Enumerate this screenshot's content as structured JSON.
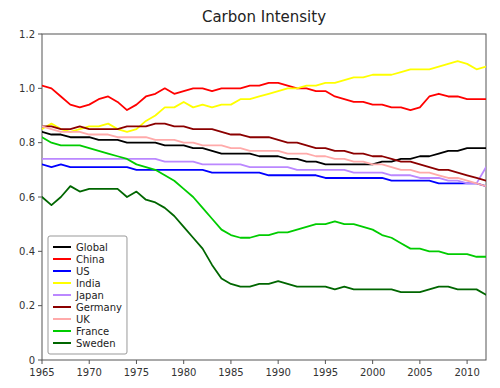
{
  "chart_data": {
    "type": "line",
    "title": "Carbon Intensity",
    "x": [
      1965,
      1966,
      1967,
      1968,
      1969,
      1970,
      1971,
      1972,
      1973,
      1974,
      1975,
      1976,
      1977,
      1978,
      1979,
      1980,
      1981,
      1982,
      1983,
      1984,
      1985,
      1986,
      1987,
      1988,
      1989,
      1990,
      1991,
      1992,
      1993,
      1994,
      1995,
      1996,
      1997,
      1998,
      1999,
      2000,
      2001,
      2002,
      2003,
      2004,
      2005,
      2006,
      2007,
      2008,
      2009,
      2010,
      2011,
      2012
    ],
    "xlim": [
      1965,
      2012
    ],
    "ylim": [
      0,
      1.2
    ],
    "xticks": [
      1965,
      1970,
      1975,
      1980,
      1985,
      1990,
      1995,
      2000,
      2005,
      2010
    ],
    "yticks": [
      0,
      0.2,
      0.4,
      0.6,
      0.8,
      {
        "value": 1.0,
        "label": "1.0"
      },
      1.2
    ],
    "grid": false,
    "legend": "lower left",
    "series": [
      {
        "name": "Global",
        "color": "#000000",
        "values": [
          0.84,
          0.83,
          0.83,
          0.82,
          0.82,
          0.82,
          0.81,
          0.81,
          0.81,
          0.8,
          0.8,
          0.8,
          0.8,
          0.79,
          0.79,
          0.79,
          0.78,
          0.78,
          0.77,
          0.76,
          0.76,
          0.76,
          0.76,
          0.75,
          0.75,
          0.75,
          0.74,
          0.74,
          0.73,
          0.73,
          0.72,
          0.72,
          0.72,
          0.72,
          0.72,
          0.72,
          0.73,
          0.73,
          0.74,
          0.74,
          0.75,
          0.75,
          0.76,
          0.77,
          0.77,
          0.78,
          0.78,
          0.78
        ]
      },
      {
        "name": "China",
        "color": "#ff0000",
        "values": [
          1.01,
          1.0,
          0.97,
          0.94,
          0.93,
          0.94,
          0.96,
          0.97,
          0.95,
          0.92,
          0.94,
          0.97,
          0.98,
          1.0,
          0.98,
          0.99,
          1.0,
          1.0,
          0.99,
          1.0,
          1.0,
          1.0,
          1.01,
          1.01,
          1.02,
          1.02,
          1.01,
          1.0,
          1.0,
          0.99,
          0.99,
          0.97,
          0.96,
          0.95,
          0.95,
          0.94,
          0.94,
          0.93,
          0.93,
          0.92,
          0.93,
          0.97,
          0.98,
          0.97,
          0.97,
          0.96,
          0.96,
          0.96
        ]
      },
      {
        "name": "US",
        "color": "#0000ff",
        "values": [
          0.72,
          0.71,
          0.72,
          0.71,
          0.71,
          0.71,
          0.71,
          0.71,
          0.71,
          0.71,
          0.7,
          0.7,
          0.7,
          0.7,
          0.7,
          0.7,
          0.7,
          0.7,
          0.69,
          0.69,
          0.69,
          0.69,
          0.69,
          0.69,
          0.68,
          0.68,
          0.68,
          0.68,
          0.68,
          0.68,
          0.67,
          0.67,
          0.67,
          0.67,
          0.67,
          0.67,
          0.67,
          0.66,
          0.66,
          0.66,
          0.66,
          0.66,
          0.65,
          0.65,
          0.65,
          0.65,
          0.65,
          0.64
        ]
      },
      {
        "name": "India",
        "color": "#ffff00",
        "values": [
          0.85,
          0.87,
          0.85,
          0.84,
          0.85,
          0.86,
          0.86,
          0.87,
          0.85,
          0.84,
          0.85,
          0.88,
          0.9,
          0.93,
          0.93,
          0.95,
          0.93,
          0.94,
          0.93,
          0.94,
          0.94,
          0.96,
          0.96,
          0.97,
          0.98,
          0.99,
          1.0,
          1.0,
          1.01,
          1.01,
          1.02,
          1.02,
          1.03,
          1.04,
          1.04,
          1.05,
          1.05,
          1.05,
          1.06,
          1.07,
          1.07,
          1.07,
          1.08,
          1.09,
          1.1,
          1.09,
          1.07,
          1.08
        ]
      },
      {
        "name": "Japan",
        "color": "#bb88ff",
        "values": [
          0.74,
          0.74,
          0.74,
          0.74,
          0.74,
          0.74,
          0.74,
          0.74,
          0.74,
          0.74,
          0.74,
          0.74,
          0.74,
          0.73,
          0.73,
          0.73,
          0.73,
          0.72,
          0.72,
          0.72,
          0.72,
          0.72,
          0.71,
          0.71,
          0.71,
          0.71,
          0.71,
          0.7,
          0.7,
          0.7,
          0.7,
          0.7,
          0.7,
          0.69,
          0.69,
          0.69,
          0.69,
          0.68,
          0.68,
          0.68,
          0.67,
          0.67,
          0.67,
          0.66,
          0.66,
          0.65,
          0.65,
          0.71
        ]
      },
      {
        "name": "Germany",
        "color": "#8b0000",
        "values": [
          0.86,
          0.86,
          0.85,
          0.85,
          0.86,
          0.85,
          0.85,
          0.85,
          0.85,
          0.86,
          0.86,
          0.86,
          0.87,
          0.87,
          0.86,
          0.86,
          0.85,
          0.85,
          0.85,
          0.84,
          0.83,
          0.83,
          0.82,
          0.82,
          0.82,
          0.81,
          0.8,
          0.8,
          0.79,
          0.78,
          0.78,
          0.77,
          0.77,
          0.76,
          0.76,
          0.75,
          0.75,
          0.74,
          0.73,
          0.73,
          0.72,
          0.71,
          0.7,
          0.7,
          0.69,
          0.68,
          0.67,
          0.66
        ]
      },
      {
        "name": "UK",
        "color": "#ffaaaa",
        "values": [
          0.86,
          0.85,
          0.84,
          0.84,
          0.84,
          0.83,
          0.83,
          0.83,
          0.82,
          0.82,
          0.82,
          0.82,
          0.81,
          0.81,
          0.81,
          0.8,
          0.8,
          0.79,
          0.79,
          0.79,
          0.78,
          0.78,
          0.77,
          0.77,
          0.77,
          0.77,
          0.76,
          0.76,
          0.76,
          0.75,
          0.75,
          0.74,
          0.74,
          0.73,
          0.73,
          0.72,
          0.72,
          0.71,
          0.7,
          0.7,
          0.69,
          0.69,
          0.68,
          0.67,
          0.67,
          0.66,
          0.65,
          0.64
        ]
      },
      {
        "name": "France",
        "color": "#00cc00",
        "values": [
          0.82,
          0.8,
          0.79,
          0.79,
          0.79,
          0.78,
          0.77,
          0.76,
          0.75,
          0.74,
          0.72,
          0.71,
          0.7,
          0.68,
          0.66,
          0.63,
          0.6,
          0.56,
          0.52,
          0.48,
          0.46,
          0.45,
          0.45,
          0.46,
          0.46,
          0.47,
          0.47,
          0.48,
          0.49,
          0.5,
          0.5,
          0.51,
          0.5,
          0.5,
          0.49,
          0.48,
          0.46,
          0.45,
          0.43,
          0.41,
          0.41,
          0.4,
          0.4,
          0.39,
          0.39,
          0.39,
          0.38,
          0.38
        ]
      },
      {
        "name": "Sweden",
        "color": "#006600",
        "values": [
          0.6,
          0.57,
          0.6,
          0.64,
          0.62,
          0.63,
          0.63,
          0.63,
          0.63,
          0.6,
          0.62,
          0.59,
          0.58,
          0.56,
          0.53,
          0.49,
          0.45,
          0.41,
          0.35,
          0.3,
          0.28,
          0.27,
          0.27,
          0.28,
          0.28,
          0.29,
          0.28,
          0.27,
          0.27,
          0.27,
          0.27,
          0.26,
          0.27,
          0.26,
          0.26,
          0.26,
          0.26,
          0.26,
          0.25,
          0.25,
          0.25,
          0.26,
          0.27,
          0.27,
          0.26,
          0.26,
          0.26,
          0.24
        ]
      }
    ]
  }
}
